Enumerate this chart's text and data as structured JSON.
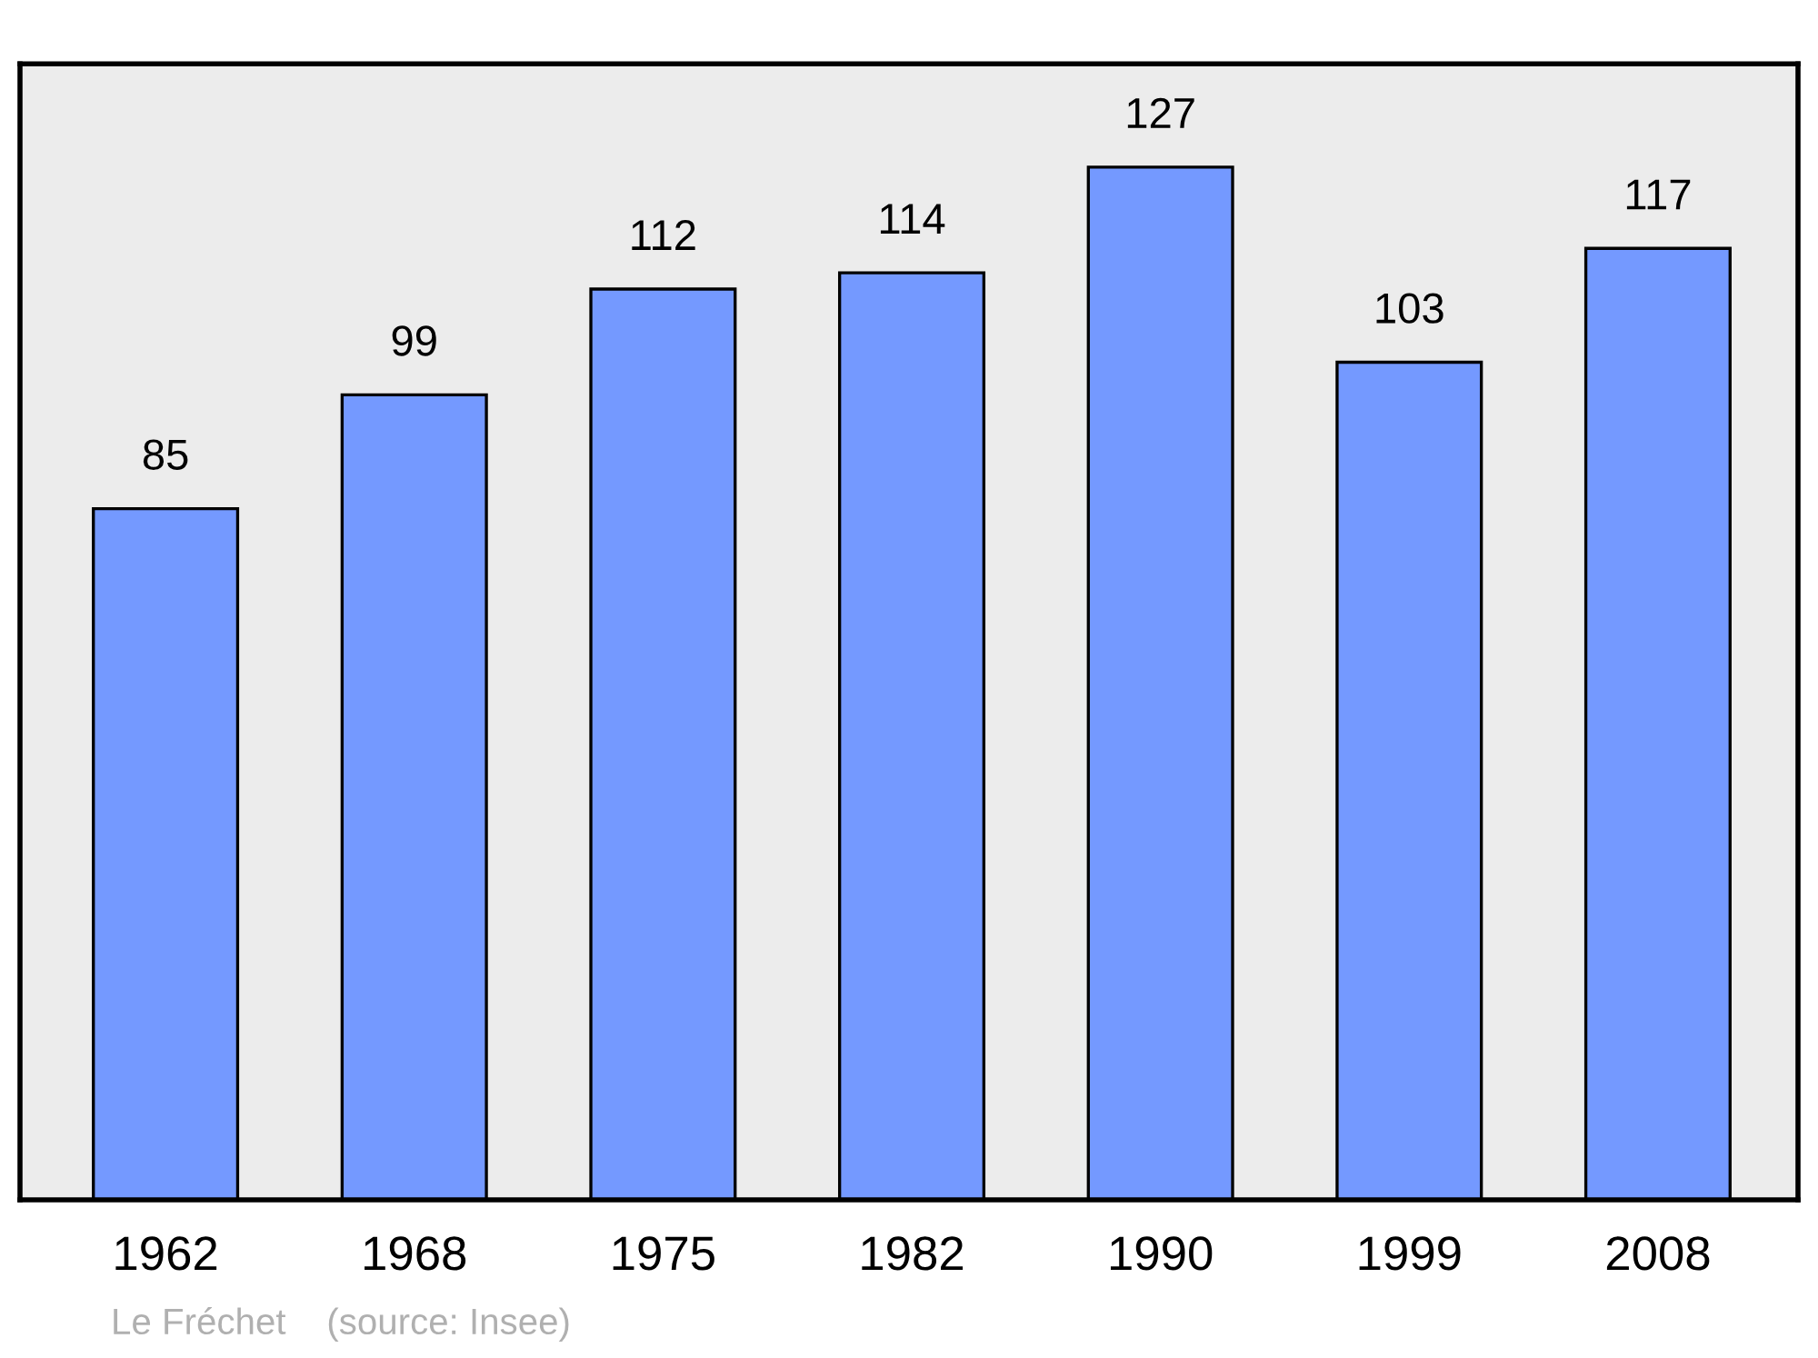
{
  "chart_data": {
    "type": "bar",
    "categories": [
      "1962",
      "1968",
      "1975",
      "1982",
      "1990",
      "1999",
      "2008"
    ],
    "values": [
      85,
      99,
      112,
      114,
      127,
      103,
      117
    ],
    "color": "#7499ff",
    "data_labels": true,
    "grid": false,
    "legend": false,
    "annotations": [
      "Le Fréchet    (source: Insee)"
    ]
  }
}
